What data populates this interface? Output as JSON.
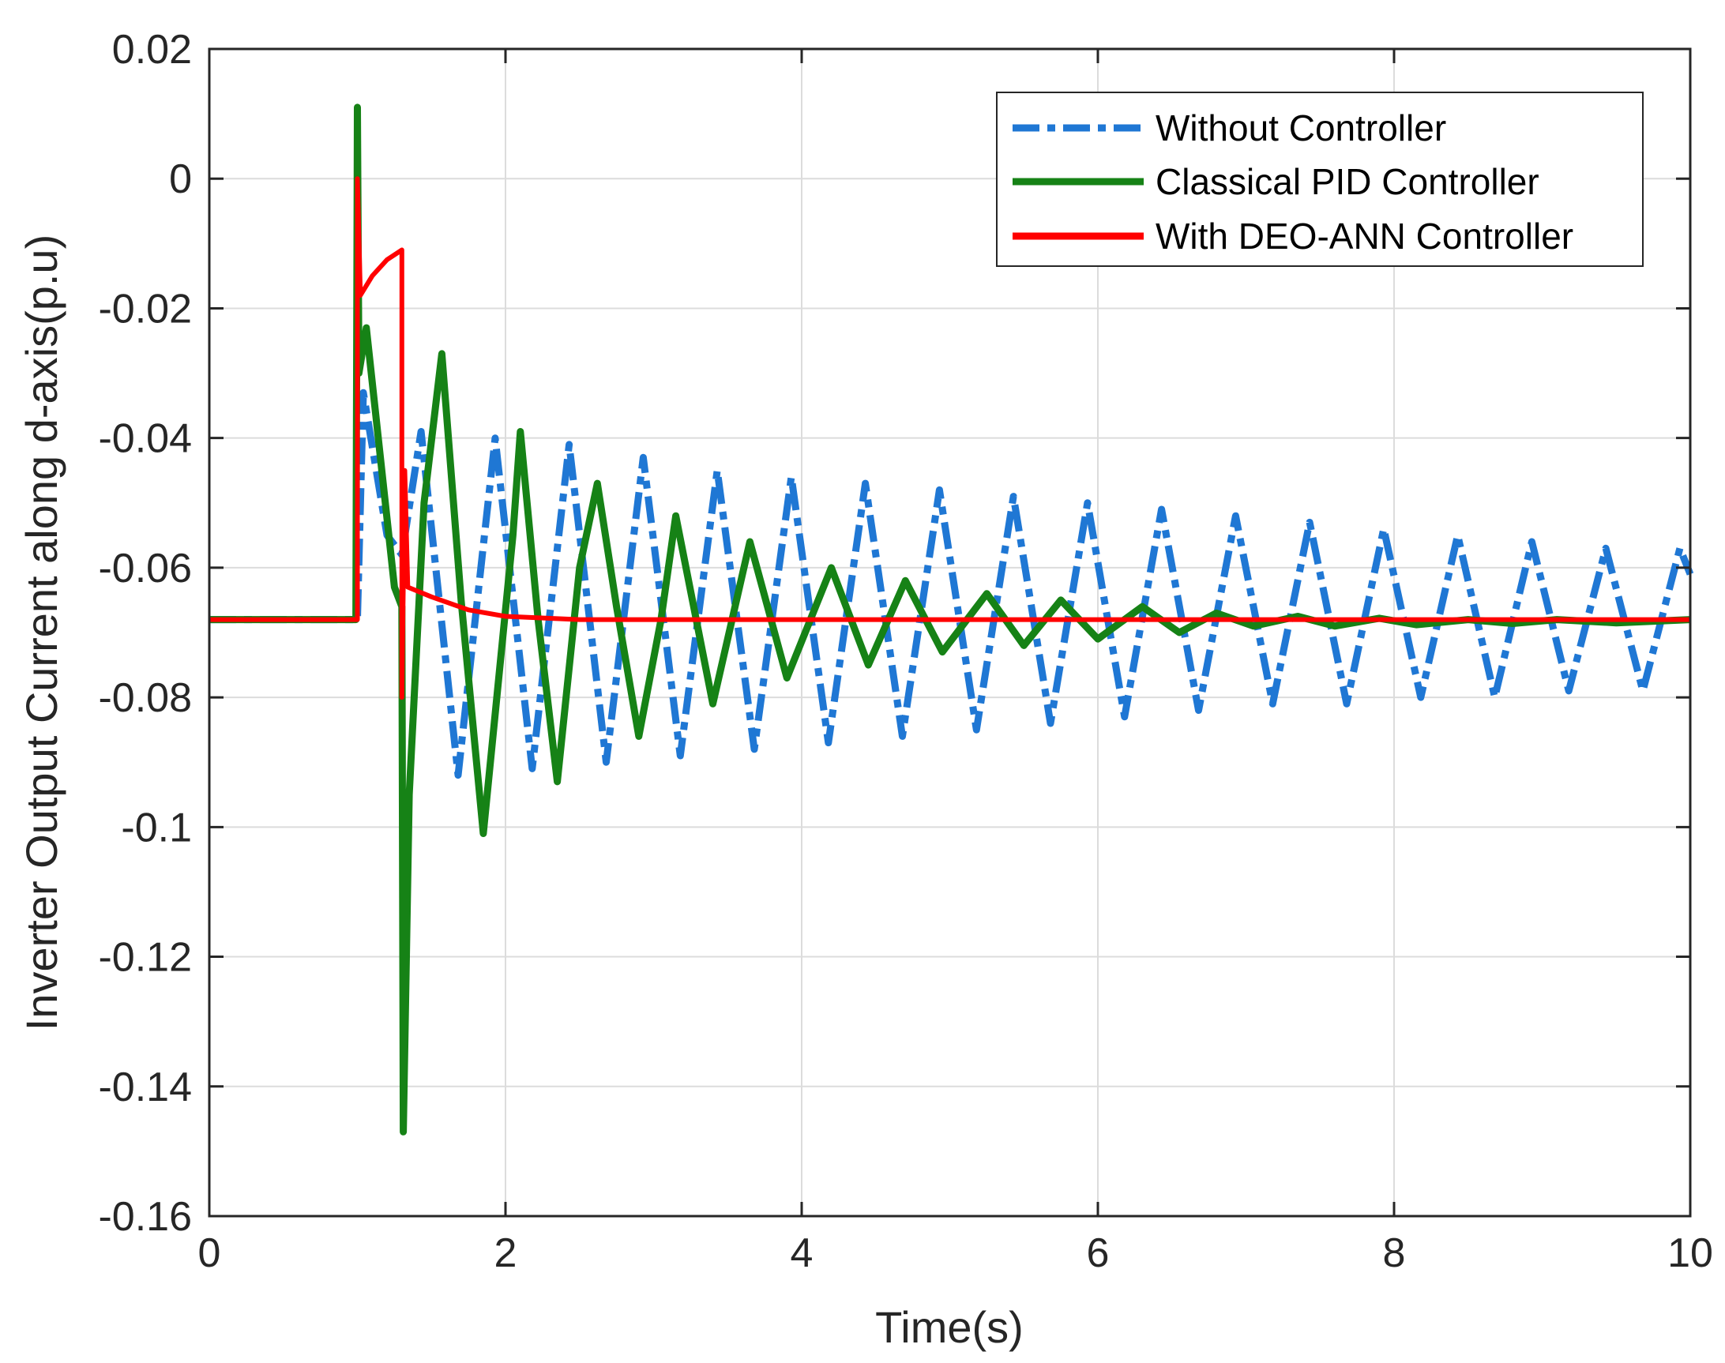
{
  "chart_data": {
    "type": "line",
    "title": "",
    "xlabel": "Time(s)",
    "ylabel": "Inverter Output Current along d-axis(p.u)",
    "xlim": [
      0,
      10
    ],
    "ylim": [
      -0.16,
      0.02
    ],
    "xticks": [
      0,
      2,
      4,
      6,
      8,
      10
    ],
    "yticks": [
      0.02,
      0,
      -0.02,
      -0.04,
      -0.06,
      -0.08,
      -0.1,
      -0.12,
      -0.14,
      -0.16
    ],
    "xtick_labels": [
      "0",
      "2",
      "4",
      "6",
      "8",
      "10"
    ],
    "ytick_labels": [
      "0.02",
      "0",
      "-0.02",
      "-0.04",
      "-0.06",
      "-0.08",
      "-0.1",
      "-0.12",
      "-0.14",
      "-0.16"
    ],
    "grid": true,
    "legend_position": "top-right",
    "series": [
      {
        "name": "Without Controller",
        "color": "#1f77d4",
        "style": "dash-dot",
        "points": [
          [
            0,
            -0.068
          ],
          [
            1.0,
            -0.068
          ],
          [
            1.04,
            -0.033
          ],
          [
            1.2,
            -0.055
          ],
          [
            1.3,
            -0.058
          ],
          [
            1.43,
            -0.039
          ],
          [
            1.68,
            -0.092
          ],
          [
            1.93,
            -0.04
          ],
          [
            2.18,
            -0.091
          ],
          [
            2.43,
            -0.041
          ],
          [
            2.68,
            -0.09
          ],
          [
            2.93,
            -0.043
          ],
          [
            3.18,
            -0.089
          ],
          [
            3.43,
            -0.045
          ],
          [
            3.68,
            -0.088
          ],
          [
            3.93,
            -0.046
          ],
          [
            4.18,
            -0.087
          ],
          [
            4.43,
            -0.047
          ],
          [
            4.68,
            -0.086
          ],
          [
            4.93,
            -0.048
          ],
          [
            5.18,
            -0.085
          ],
          [
            5.43,
            -0.049
          ],
          [
            5.68,
            -0.084
          ],
          [
            5.93,
            -0.05
          ],
          [
            6.18,
            -0.083
          ],
          [
            6.43,
            -0.051
          ],
          [
            6.68,
            -0.082
          ],
          [
            6.93,
            -0.052
          ],
          [
            7.18,
            -0.081
          ],
          [
            7.43,
            -0.053
          ],
          [
            7.68,
            -0.081
          ],
          [
            7.93,
            -0.054
          ],
          [
            8.18,
            -0.08
          ],
          [
            8.43,
            -0.055
          ],
          [
            8.68,
            -0.08
          ],
          [
            8.93,
            -0.056
          ],
          [
            9.18,
            -0.079
          ],
          [
            9.43,
            -0.057
          ],
          [
            9.68,
            -0.079
          ],
          [
            9.93,
            -0.057
          ],
          [
            10.0,
            -0.061
          ]
        ]
      },
      {
        "name": "Classical PID Controller",
        "color": "#168216",
        "style": "solid",
        "points": [
          [
            0,
            -0.068
          ],
          [
            0.99,
            -0.068
          ],
          [
            1.0,
            0.011
          ],
          [
            1.01,
            -0.03
          ],
          [
            1.06,
            -0.023
          ],
          [
            1.25,
            -0.063
          ],
          [
            1.3,
            -0.066
          ],
          [
            1.31,
            -0.147
          ],
          [
            1.35,
            -0.095
          ],
          [
            1.45,
            -0.05
          ],
          [
            1.57,
            -0.027
          ],
          [
            1.7,
            -0.065
          ],
          [
            1.85,
            -0.101
          ],
          [
            2.05,
            -0.055
          ],
          [
            2.1,
            -0.039
          ],
          [
            2.22,
            -0.068
          ],
          [
            2.35,
            -0.093
          ],
          [
            2.5,
            -0.06
          ],
          [
            2.62,
            -0.047
          ],
          [
            2.75,
            -0.066
          ],
          [
            2.9,
            -0.086
          ],
          [
            3.05,
            -0.068
          ],
          [
            3.15,
            -0.052
          ],
          [
            3.4,
            -0.081
          ],
          [
            3.65,
            -0.056
          ],
          [
            3.9,
            -0.077
          ],
          [
            4.2,
            -0.06
          ],
          [
            4.45,
            -0.075
          ],
          [
            4.7,
            -0.062
          ],
          [
            4.95,
            -0.073
          ],
          [
            5.25,
            -0.064
          ],
          [
            5.5,
            -0.072
          ],
          [
            5.75,
            -0.065
          ],
          [
            6.0,
            -0.071
          ],
          [
            6.3,
            -0.066
          ],
          [
            6.55,
            -0.07
          ],
          [
            6.8,
            -0.067
          ],
          [
            7.05,
            -0.069
          ],
          [
            7.35,
            -0.0675
          ],
          [
            7.6,
            -0.069
          ],
          [
            7.9,
            -0.0678
          ],
          [
            8.15,
            -0.0688
          ],
          [
            8.5,
            -0.068
          ],
          [
            8.8,
            -0.0686
          ],
          [
            9.1,
            -0.068
          ],
          [
            9.5,
            -0.0685
          ],
          [
            10.0,
            -0.068
          ]
        ]
      },
      {
        "name": "With DEO-ANN Controller",
        "color": "#ff0000",
        "style": "solid",
        "points": [
          [
            0,
            -0.068
          ],
          [
            1.0,
            -0.068
          ],
          [
            1.0,
            0.0
          ],
          [
            1.02,
            -0.018
          ],
          [
            1.1,
            -0.015
          ],
          [
            1.2,
            -0.0125
          ],
          [
            1.3,
            -0.011
          ],
          [
            1.3,
            -0.08
          ],
          [
            1.32,
            -0.045
          ],
          [
            1.34,
            -0.063
          ],
          [
            1.5,
            -0.0645
          ],
          [
            1.75,
            -0.0665
          ],
          [
            2.0,
            -0.0675
          ],
          [
            2.5,
            -0.068
          ],
          [
            10.0,
            -0.068
          ]
        ]
      }
    ]
  }
}
